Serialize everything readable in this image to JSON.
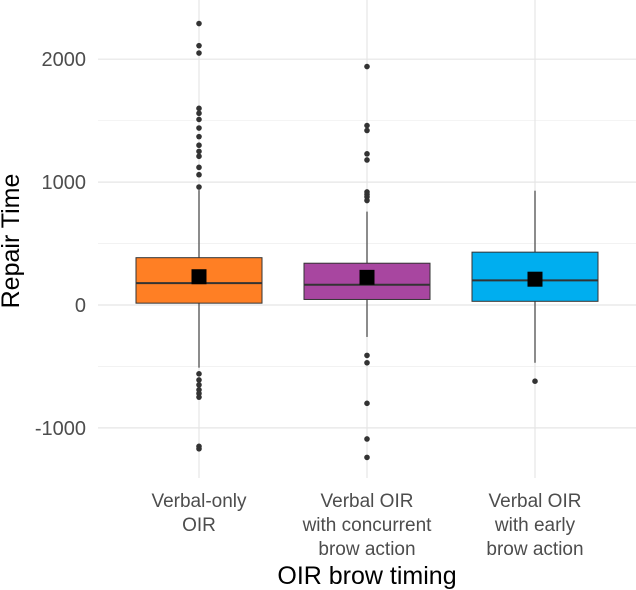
{
  "chart_data": {
    "type": "box",
    "title": "",
    "xlabel": "OIR brow timing",
    "ylabel": "Repair Time",
    "ylim": [
      -1400,
      2350
    ],
    "yticks": [
      -1000,
      0,
      1000,
      2000
    ],
    "ytick_labels": [
      "-1000",
      "0",
      "1000",
      "2000"
    ],
    "grid": true,
    "legend": "none",
    "categories": [
      {
        "lines": [
          "Verbal-only",
          "OIR"
        ],
        "color": "#FF7F24",
        "q1": 15,
        "median": 178,
        "q3": 385,
        "whisker_low": -510,
        "whisker_high": 935,
        "mean": 230,
        "outliers": [
          2290,
          2110,
          2050,
          1600,
          1560,
          1510,
          1440,
          1370,
          1300,
          1250,
          1210,
          1120,
          1060,
          960,
          -560,
          -610,
          -650,
          -690,
          -720,
          -750,
          -1150,
          -1170
        ]
      },
      {
        "lines": [
          "Verbal OIR",
          "with concurrent",
          "brow action"
        ],
        "color": "#A846A0",
        "q1": 45,
        "median": 165,
        "q3": 340,
        "whisker_low": -260,
        "whisker_high": 760,
        "mean": 225,
        "outliers": [
          1940,
          1460,
          1420,
          1230,
          1180,
          920,
          900,
          880,
          850,
          -410,
          -470,
          -800,
          -1090,
          -1240
        ]
      },
      {
        "lines": [
          "Verbal OIR",
          "with early",
          "brow action"
        ],
        "color": "#00AEEF",
        "q1": 30,
        "median": 200,
        "q3": 430,
        "whisker_low": -470,
        "whisker_high": 930,
        "mean": 210,
        "outliers": [
          -620
        ]
      }
    ]
  }
}
